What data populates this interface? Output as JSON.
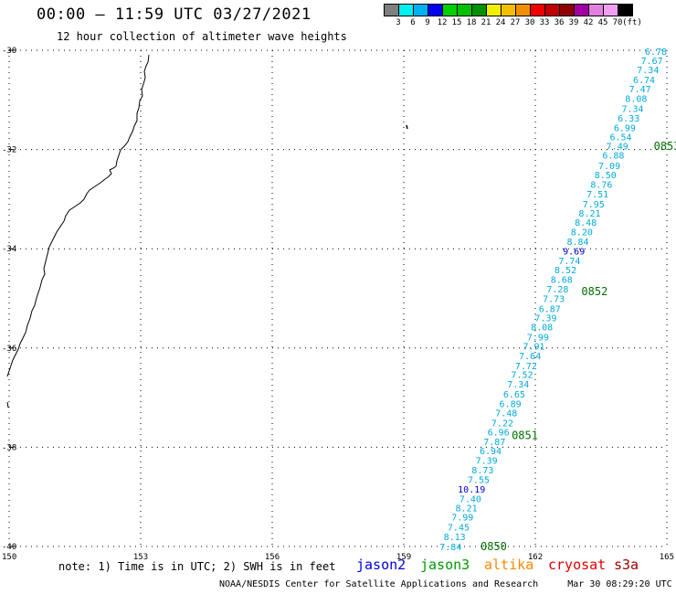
{
  "header": {
    "title": "00:00 — 11:59 UTC 03/27/2021",
    "subtitle": "12 hour collection of altimeter wave heights"
  },
  "legend": {
    "unit": "(ft)",
    "colors": [
      "#7f7f7f",
      "#00f0f0",
      "#00b0f0",
      "#0000f0",
      "#00d000",
      "#00c000",
      "#009000",
      "#f0f000",
      "#f0c000",
      "#f09000",
      "#f00000",
      "#c00000",
      "#900000",
      "#a000a0",
      "#e080e0",
      "#f0a0f0",
      "#000000"
    ],
    "labels": [
      "3",
      "6",
      "9",
      "12",
      "15",
      "18",
      "21",
      "24",
      "27",
      "30",
      "33",
      "36",
      "39",
      "42",
      "45",
      "70"
    ]
  },
  "axes": {
    "x_ticks": [
      "150",
      "153",
      "156",
      "159",
      "162",
      "165"
    ],
    "y_ticks": [
      "-30",
      "-32",
      "-34",
      "-36",
      "-38",
      "-40"
    ],
    "lon_range": [
      150,
      165
    ],
    "lat_range": [
      -40,
      -30
    ]
  },
  "track": {
    "satellite": "jason3",
    "color": "#00aadd",
    "high_color": "#0000cc",
    "points": [
      {
        "lat": -30.02,
        "lon": 165.0,
        "swh": "6.78",
        "high": false
      },
      {
        "lat": -30.2,
        "lon": 164.91,
        "swh": "7.67",
        "high": false
      },
      {
        "lat": -30.39,
        "lon": 164.82,
        "swh": "7.34",
        "high": false
      },
      {
        "lat": -30.59,
        "lon": 164.73,
        "swh": "6.74",
        "high": false
      },
      {
        "lat": -30.77,
        "lon": 164.64,
        "swh": "7.47",
        "high": false
      },
      {
        "lat": -30.97,
        "lon": 164.55,
        "swh": "8.08",
        "high": false
      },
      {
        "lat": -31.17,
        "lon": 164.47,
        "swh": "7.34",
        "high": false
      },
      {
        "lat": -31.36,
        "lon": 164.38,
        "swh": "6.33",
        "high": false
      },
      {
        "lat": -31.56,
        "lon": 164.29,
        "swh": "6.99",
        "high": false
      },
      {
        "lat": -31.74,
        "lon": 164.2,
        "swh": "6.54",
        "high": false
      },
      {
        "lat": -31.92,
        "lon": 164.12,
        "swh": "7.49",
        "high": false
      },
      {
        "lat": -32.11,
        "lon": 164.03,
        "swh": "6.88",
        "high": false
      },
      {
        "lat": -32.32,
        "lon": 163.94,
        "swh": "7.09",
        "high": false
      },
      {
        "lat": -32.5,
        "lon": 163.85,
        "swh": "8.50",
        "high": false
      },
      {
        "lat": -32.7,
        "lon": 163.76,
        "swh": "8.76",
        "high": false
      },
      {
        "lat": -32.89,
        "lon": 163.67,
        "swh": "7.51",
        "high": false
      },
      {
        "lat": -33.09,
        "lon": 163.58,
        "swh": "7.95",
        "high": false
      },
      {
        "lat": -33.28,
        "lon": 163.49,
        "swh": "8.21",
        "high": false
      },
      {
        "lat": -33.46,
        "lon": 163.4,
        "swh": "8.48",
        "high": false
      },
      {
        "lat": -33.66,
        "lon": 163.31,
        "swh": "8.20",
        "high": false
      },
      {
        "lat": -33.85,
        "lon": 163.22,
        "swh": "8.84",
        "high": false
      },
      {
        "lat": -34.04,
        "lon": 163.13,
        "swh": "9.69",
        "high": true
      },
      {
        "lat": -34.24,
        "lon": 163.03,
        "swh": "7.74",
        "high": false
      },
      {
        "lat": -34.42,
        "lon": 162.94,
        "swh": "8.52",
        "high": false
      },
      {
        "lat": -34.61,
        "lon": 162.85,
        "swh": "8.68",
        "high": false
      },
      {
        "lat": -34.81,
        "lon": 162.76,
        "swh": "7.28",
        "high": false
      },
      {
        "lat": -35.0,
        "lon": 162.67,
        "swh": "7.73",
        "high": false
      },
      {
        "lat": -35.2,
        "lon": 162.58,
        "swh": "6.87",
        "high": false
      },
      {
        "lat": -35.39,
        "lon": 162.49,
        "swh": "7.39",
        "high": false
      },
      {
        "lat": -35.57,
        "lon": 162.4,
        "swh": "8.08",
        "high": false
      },
      {
        "lat": -35.77,
        "lon": 162.31,
        "swh": "7.99",
        "high": false
      },
      {
        "lat": -35.96,
        "lon": 162.22,
        "swh": "7.91",
        "high": false
      },
      {
        "lat": -36.15,
        "lon": 162.13,
        "swh": "7.64",
        "high": false
      },
      {
        "lat": -36.35,
        "lon": 162.04,
        "swh": "7.72",
        "high": false
      },
      {
        "lat": -36.53,
        "lon": 161.95,
        "swh": "7.52",
        "high": false
      },
      {
        "lat": -36.72,
        "lon": 161.86,
        "swh": "7.34",
        "high": false
      },
      {
        "lat": -36.92,
        "lon": 161.77,
        "swh": "6.65",
        "high": false
      },
      {
        "lat": -37.12,
        "lon": 161.68,
        "swh": "6.89",
        "high": false
      },
      {
        "lat": -37.3,
        "lon": 161.59,
        "swh": "7.48",
        "high": false
      },
      {
        "lat": -37.5,
        "lon": 161.5,
        "swh": "7.22",
        "high": false
      },
      {
        "lat": -37.69,
        "lon": 161.41,
        "swh": "6.96",
        "high": false
      },
      {
        "lat": -37.88,
        "lon": 161.32,
        "swh": "7.87",
        "high": false
      },
      {
        "lat": -38.07,
        "lon": 161.23,
        "swh": "6.94",
        "high": false
      },
      {
        "lat": -38.26,
        "lon": 161.14,
        "swh": "7.39",
        "high": false
      },
      {
        "lat": -38.45,
        "lon": 161.05,
        "swh": "8.73",
        "high": false
      },
      {
        "lat": -38.65,
        "lon": 160.96,
        "swh": "7.55",
        "high": false
      },
      {
        "lat": -38.84,
        "lon": 160.86,
        "swh": "10.19",
        "high": true
      },
      {
        "lat": -39.03,
        "lon": 160.77,
        "swh": "7.40",
        "high": false
      },
      {
        "lat": -39.22,
        "lon": 160.68,
        "swh": "8.21",
        "high": false
      },
      {
        "lat": -39.4,
        "lon": 160.59,
        "swh": "7.99",
        "high": false
      },
      {
        "lat": -39.6,
        "lon": 160.5,
        "swh": "7.45",
        "high": false
      },
      {
        "lat": -39.8,
        "lon": 160.41,
        "swh": "8.13",
        "high": false
      },
      {
        "lat": -40.0,
        "lon": 160.32,
        "swh": "7.84",
        "high": false
      }
    ],
    "time_labels": [
      {
        "text": "0853",
        "lat": -31.93,
        "lon": 164.7
      },
      {
        "text": "0852",
        "lat": -34.86,
        "lon": 163.05
      },
      {
        "text": "0851",
        "lat": -37.76,
        "lon": 161.46
      },
      {
        "text": "0850",
        "lat": -40.0,
        "lon": 160.75
      }
    ]
  },
  "footer": {
    "note": "note: 1) Time is in UTC; 2) SWH is in feet",
    "satellites": [
      {
        "name": "jason2",
        "color": "#0000dd"
      },
      {
        "name": "jason3",
        "color": "#009900"
      },
      {
        "name": "altika",
        "color": "#ff8800"
      },
      {
        "name": "cryosat",
        "color": "#dd0000"
      },
      {
        "name": "s3a",
        "color": "#990000"
      }
    ],
    "credit": "NOAA/NESDIS Center for Satellite Applications and Research",
    "timestamp": "Mar 30 08:29:20 UTC 2021"
  }
}
